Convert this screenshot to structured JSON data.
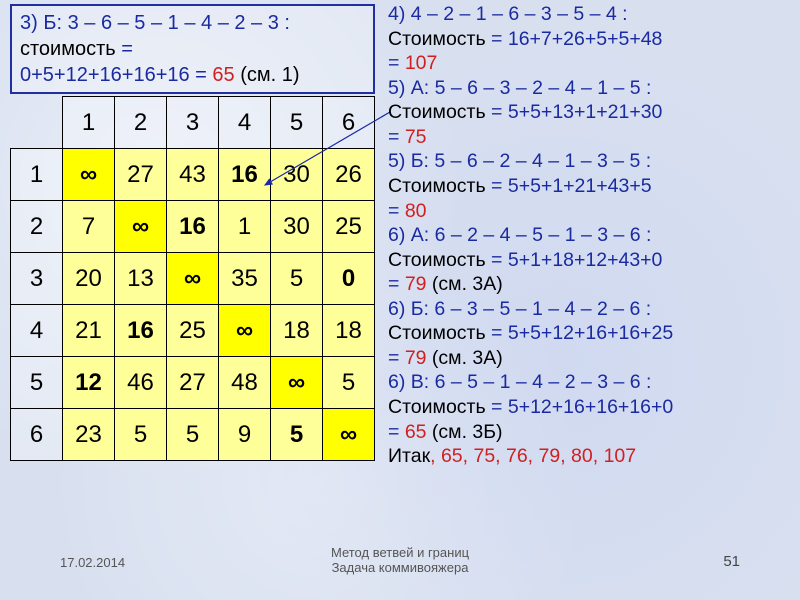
{
  "colors": {
    "navy": "#1a2aa0",
    "black": "#000000",
    "red": "#d02020",
    "bg": "#d8e0f0",
    "cell_bg": "#ffff99",
    "diag_bg": "#ffff00",
    "border": "#2030a0"
  },
  "top_box": {
    "line1_label": "3) Б: ",
    "line1_route": "3 – 6 – 5 – 1 – 4 – 2 – 3 :",
    "line2_prefix": "стоимость",
    "line2_eq": " = ",
    "line3_sum": "0+5+12+16+16+16 = ",
    "line3_val": "65",
    "line3_suffix": " (см. 1)"
  },
  "matrix": {
    "headers": [
      "1",
      "2",
      "3",
      "4",
      "5",
      "6"
    ],
    "rows": [
      {
        "h": "1",
        "cells": [
          {
            "v": "∞",
            "d": true
          },
          {
            "v": "27"
          },
          {
            "v": "43"
          },
          {
            "v": "16",
            "b": true
          },
          {
            "v": "30"
          },
          {
            "v": "26"
          }
        ]
      },
      {
        "h": "2",
        "cells": [
          {
            "v": "7"
          },
          {
            "v": "∞",
            "d": true
          },
          {
            "v": "16",
            "b": true
          },
          {
            "v": "1"
          },
          {
            "v": "30"
          },
          {
            "v": "25"
          }
        ]
      },
      {
        "h": "3",
        "cells": [
          {
            "v": "20"
          },
          {
            "v": "13"
          },
          {
            "v": "∞",
            "d": true
          },
          {
            "v": "35"
          },
          {
            "v": "5"
          },
          {
            "v": "0",
            "b": true
          }
        ]
      },
      {
        "h": "4",
        "cells": [
          {
            "v": "21"
          },
          {
            "v": "16",
            "b": true
          },
          {
            "v": "25"
          },
          {
            "v": "∞",
            "d": true
          },
          {
            "v": "18"
          },
          {
            "v": "18"
          }
        ]
      },
      {
        "h": "5",
        "cells": [
          {
            "v": "12",
            "b": true
          },
          {
            "v": "46"
          },
          {
            "v": "27"
          },
          {
            "v": "48"
          },
          {
            "v": "∞",
            "d": true
          },
          {
            "v": "5"
          }
        ]
      },
      {
        "h": "6",
        "cells": [
          {
            "v": "23"
          },
          {
            "v": "5"
          },
          {
            "v": "5"
          },
          {
            "v": "9"
          },
          {
            "v": "5",
            "b": true
          },
          {
            "v": "∞",
            "d": true
          }
        ]
      }
    ]
  },
  "right": [
    {
      "t": "navy",
      "v": "4)  4 – 2 – 1 – 6 – 3 – 5 – 4 :"
    },
    {
      "t": "mix",
      "parts": [
        {
          "c": "black",
          "v": "Стоимость"
        },
        {
          "c": "navy",
          "v": " = 16+7+26+5+5+48"
        }
      ]
    },
    {
      "t": "mix",
      "parts": [
        {
          "c": "navy",
          "v": "=  "
        },
        {
          "c": "red",
          "v": "107"
        }
      ]
    },
    {
      "t": "navy",
      "v": "5)  А: 5 – 6 – 3 – 2 – 4 – 1 – 5 :"
    },
    {
      "t": "mix",
      "parts": [
        {
          "c": "black",
          "v": "Стоимость"
        },
        {
          "c": "navy",
          "v": " = 5+5+13+1+21+30"
        }
      ]
    },
    {
      "t": "mix",
      "parts": [
        {
          "c": "navy",
          "v": "=  "
        },
        {
          "c": "red",
          "v": "75"
        }
      ]
    },
    {
      "t": "navy",
      "v": "5)  Б: 5 – 6 – 2 – 4 – 1 – 3 – 5 :"
    },
    {
      "t": "mix",
      "parts": [
        {
          "c": "black",
          "v": "Стоимость"
        },
        {
          "c": "navy",
          "v": " = 5+5+1+21+43+5"
        }
      ]
    },
    {
      "t": "mix",
      "parts": [
        {
          "c": "navy",
          "v": "=  "
        },
        {
          "c": "red",
          "v": "80"
        }
      ]
    },
    {
      "t": "navy",
      "v": "6)  А: 6 – 2 – 4 – 5 – 1 – 3 – 6 :"
    },
    {
      "t": "mix",
      "parts": [
        {
          "c": "black",
          "v": "Стоимость"
        },
        {
          "c": "navy",
          "v": " = 5+1+18+12+43+0"
        }
      ]
    },
    {
      "t": "mix",
      "parts": [
        {
          "c": "navy",
          "v": "=  "
        },
        {
          "c": "red",
          "v": "79"
        },
        {
          "c": "black",
          "v": " (см. 3А)"
        }
      ]
    },
    {
      "t": "navy",
      "v": "6)  Б: 6 – 3 – 5 – 1 – 4 – 2 – 6 :"
    },
    {
      "t": "mix",
      "parts": [
        {
          "c": "black",
          "v": "Стоимость"
        },
        {
          "c": "navy",
          "v": " = 5+5+12+16+16+25"
        }
      ]
    },
    {
      "t": "mix",
      "parts": [
        {
          "c": "navy",
          "v": "=  "
        },
        {
          "c": "red",
          "v": "79"
        },
        {
          "c": "black",
          "v": " (см. 3А)"
        }
      ]
    },
    {
      "t": "navy",
      "v": "6)  В: 6 – 5 – 1 – 4 – 2 – 3 – 6 :"
    },
    {
      "t": "mix",
      "parts": [
        {
          "c": "black",
          "v": "Стоимость"
        },
        {
          "c": "navy",
          "v": " = 5+12+16+16+16+0"
        }
      ]
    },
    {
      "t": "mix",
      "parts": [
        {
          "c": "navy",
          "v": "=  "
        },
        {
          "c": "red",
          "v": "65"
        },
        {
          "c": "black",
          "v": " (см. 3Б)"
        }
      ]
    },
    {
      "t": "mix",
      "parts": [
        {
          "c": "black",
          "v": "Итак"
        },
        {
          "c": "red",
          "v": ", 65, 75, 76, 79, 80, 107"
        }
      ]
    }
  ],
  "footer": {
    "date": "17.02.2014",
    "title_l1": "Метод ветвей и границ",
    "title_l2": "Задача коммивояжера",
    "page": "51"
  },
  "arrow": {
    "stroke": "#1a2aa0",
    "width": 1.2
  }
}
